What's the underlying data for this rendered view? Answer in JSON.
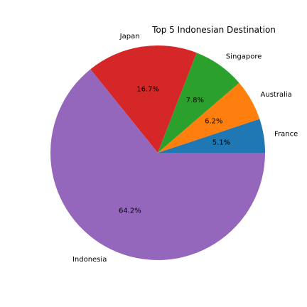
{
  "chart_data": {
    "type": "pie",
    "title": "Top 5 Indonesian Destination",
    "categories": [
      "France",
      "Australia",
      "Singapore",
      "Japan",
      "Indonesia"
    ],
    "values": [
      5.1,
      6.2,
      7.8,
      16.7,
      64.2
    ],
    "percent_labels": [
      "5.1%",
      "6.2%",
      "7.8%",
      "16.7%",
      "64.2%"
    ],
    "colors": [
      "#1f77b4",
      "#ff7f0e",
      "#2ca02c",
      "#d62728",
      "#9467bd"
    ],
    "start_angle_deg": 0,
    "direction": "counterclockwise",
    "legend": "none"
  }
}
